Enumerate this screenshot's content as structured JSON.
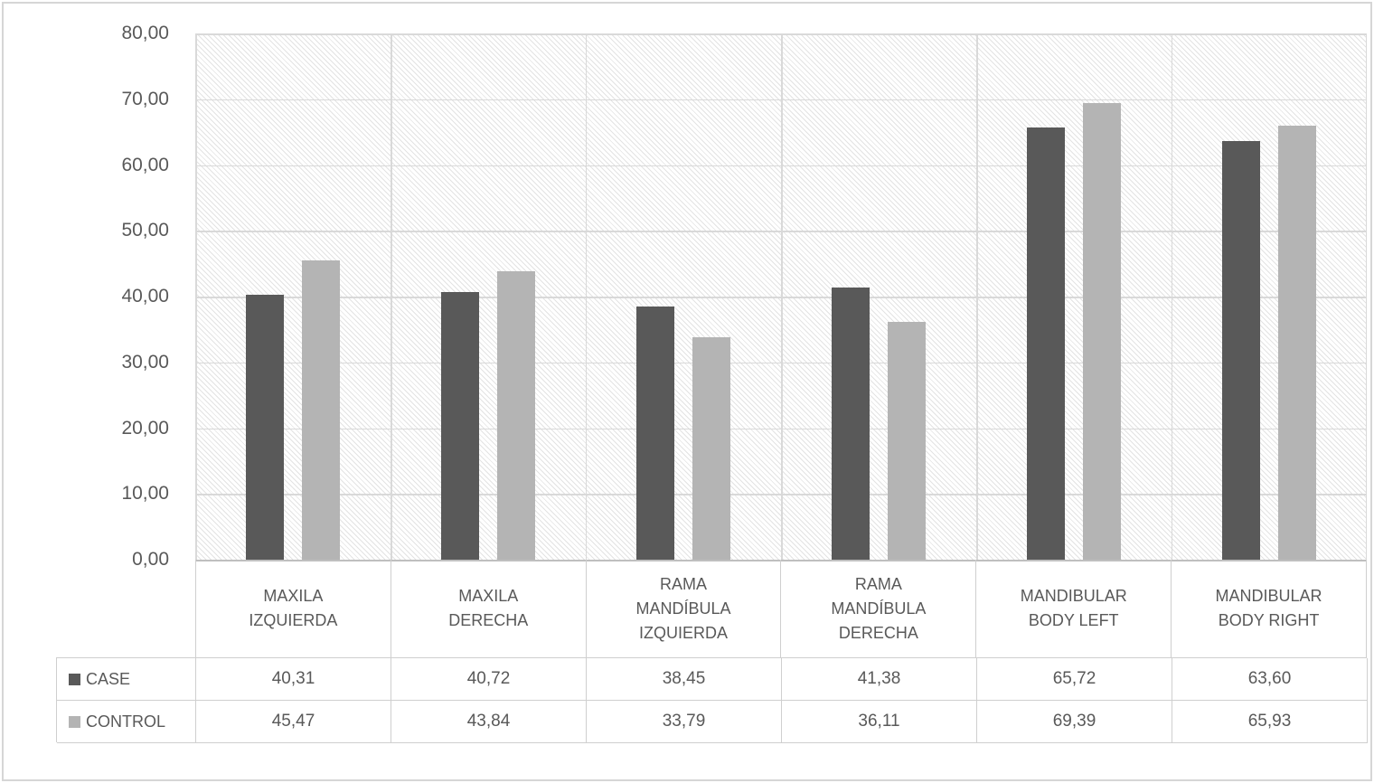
{
  "chart_data": {
    "type": "bar",
    "title": "",
    "xlabel": "",
    "ylabel": "",
    "categories": [
      "MAXILA IZQUIERDA",
      "MAXILA DERECHA",
      "RAMA MANDÍBULA IZQUIERDA",
      "RAMA MANDÍBULA DERECHA",
      "MANDIBULAR BODY LEFT",
      "MANDIBULAR BODY RIGHT"
    ],
    "series": [
      {
        "name": "CASE",
        "color": "#595959",
        "values": [
          40.31,
          40.72,
          38.45,
          41.38,
          65.72,
          63.6
        ],
        "labels": [
          "40,31",
          "40,72",
          "38,45",
          "41,38",
          "65,72",
          "63,60"
        ]
      },
      {
        "name": "CONTROL",
        "color": "#b4b4b4",
        "values": [
          45.47,
          43.84,
          33.79,
          36.11,
          69.39,
          65.93
        ],
        "labels": [
          "45,47",
          "43,84",
          "33,79",
          "36,11",
          "69,39",
          "65,93"
        ]
      }
    ],
    "ylim": [
      0,
      80
    ],
    "y_tick_interval": 10,
    "y_tick_labels": [
      "80,00",
      "70,00",
      "60,00",
      "50,00",
      "40,00",
      "30,00",
      "20,00",
      "10,00",
      "0,00"
    ],
    "grid": true,
    "legend_position": "data-table-left",
    "plot_background": "light-diagonal-hatch",
    "decimal_separator": ","
  },
  "colors": {
    "case_bar": "#595959",
    "control_bar": "#b4b4b4",
    "gridline": "#d9d9d9",
    "axis_line": "#bfbfbf",
    "table_border": "#cfcfcf",
    "hatch_line": "#e3e3e3",
    "text": "#595959",
    "figure_border": "#d6d6d6"
  }
}
